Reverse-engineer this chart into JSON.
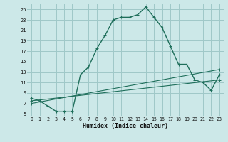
{
  "xlabel": "Humidex (Indice chaleur)",
  "bg_color": "#cce8e8",
  "grid_color": "#9fc8c8",
  "line_color": "#1e6e5a",
  "xlim": [
    -0.5,
    23.5
  ],
  "ylim": [
    4.5,
    26
  ],
  "xticks": [
    0,
    1,
    2,
    3,
    4,
    5,
    6,
    7,
    8,
    9,
    10,
    11,
    12,
    13,
    14,
    15,
    16,
    17,
    18,
    19,
    20,
    21,
    22,
    23
  ],
  "yticks": [
    5,
    7,
    9,
    11,
    13,
    15,
    17,
    19,
    21,
    23,
    25
  ],
  "curve1_x": [
    0,
    1,
    2,
    3,
    4,
    5,
    6,
    7,
    8,
    9,
    10,
    11,
    12,
    13,
    14,
    15,
    16,
    17,
    18,
    19,
    20,
    21,
    22,
    23
  ],
  "curve1_y": [
    8,
    7.5,
    6.5,
    5.5,
    5.5,
    5.5,
    12.5,
    14,
    17.5,
    20,
    23,
    23.5,
    23.5,
    24,
    25.5,
    23.5,
    21.5,
    18,
    14.5,
    14.5,
    11.5,
    11,
    9.5,
    12.5
  ],
  "curve2_x": [
    0,
    23
  ],
  "curve2_y": [
    7.0,
    13.5
  ],
  "curve3_x": [
    0,
    23
  ],
  "curve3_y": [
    7.5,
    11.5
  ],
  "font_family": "monospace"
}
